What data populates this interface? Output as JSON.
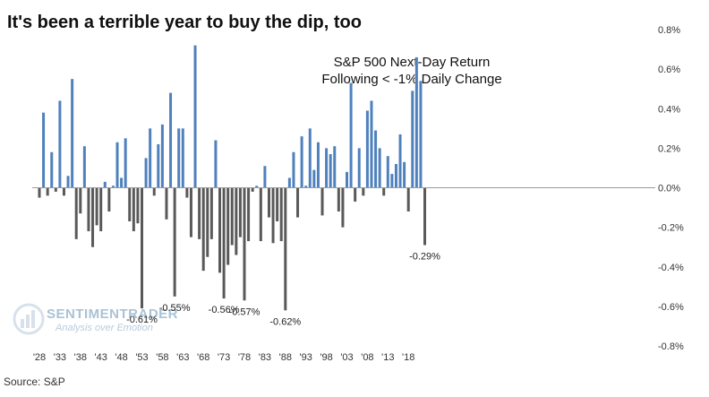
{
  "title": "It's been a terrible year to buy the dip, too",
  "subtitle_line1": "S&P 500 Next-Day Return",
  "subtitle_line2": "Following < -1% Daily Change",
  "source": "Source: S&P",
  "watermark": {
    "name": "SENTIMENTRADER",
    "tagline": "Analysis over Emotion"
  },
  "colors": {
    "positive": "#4f81bd",
    "negative": "#595959",
    "axis": "#999999"
  },
  "chart_data": {
    "type": "bar",
    "ylim": [
      -0.8,
      0.8
    ],
    "yticks": [
      "0.8%",
      "0.6%",
      "0.4%",
      "0.2%",
      "0.0%",
      "-0.2%",
      "-0.4%",
      "-0.6%",
      "-0.8%"
    ],
    "ytick_values": [
      0.8,
      0.6,
      0.4,
      0.2,
      0.0,
      -0.2,
      -0.4,
      -0.6,
      -0.8
    ],
    "xticks": [
      "'28",
      "'33",
      "'38",
      "'43",
      "'48",
      "'53",
      "'58",
      "'63",
      "'68",
      "'73",
      "'78",
      "'83",
      "'88",
      "'93",
      "'98",
      "'03",
      "'08",
      "'13",
      "'18"
    ],
    "xtick_years": [
      1928,
      1933,
      1938,
      1943,
      1948,
      1953,
      1958,
      1963,
      1968,
      1973,
      1978,
      1983,
      1988,
      1993,
      1998,
      2003,
      2008,
      2013,
      2018
    ],
    "series": [
      {
        "values": [
          [
            1928,
            -0.05
          ],
          [
            1929,
            0.38
          ],
          [
            1930,
            -0.04
          ],
          [
            1931,
            0.18
          ],
          [
            1932,
            -0.02
          ],
          [
            1933,
            0.44
          ],
          [
            1934,
            -0.04
          ],
          [
            1935,
            0.06
          ],
          [
            1936,
            0.55
          ],
          [
            1937,
            -0.26
          ],
          [
            1938,
            -0.13
          ],
          [
            1939,
            0.21
          ],
          [
            1940,
            -0.22
          ],
          [
            1941,
            -0.3
          ],
          [
            1942,
            -0.19
          ],
          [
            1943,
            -0.22
          ],
          [
            1944,
            0.03
          ],
          [
            1945,
            -0.12
          ],
          [
            1946,
            0.01
          ],
          [
            1947,
            0.23
          ],
          [
            1948,
            0.05
          ],
          [
            1949,
            0.25
          ],
          [
            1950,
            -0.17
          ],
          [
            1951,
            -0.22
          ],
          [
            1952,
            -0.18
          ],
          [
            1953,
            -0.61
          ],
          [
            1954,
            0.15
          ],
          [
            1955,
            0.3
          ],
          [
            1956,
            -0.04
          ],
          [
            1957,
            0.22
          ],
          [
            1958,
            0.32
          ],
          [
            1959,
            -0.16
          ],
          [
            1960,
            0.48
          ],
          [
            1961,
            -0.55
          ],
          [
            1962,
            0.3
          ],
          [
            1963,
            0.3
          ],
          [
            1964,
            -0.05
          ],
          [
            1965,
            -0.25
          ],
          [
            1966,
            0.72
          ],
          [
            1967,
            -0.26
          ],
          [
            1968,
            -0.42
          ],
          [
            1969,
            -0.35
          ],
          [
            1970,
            -0.26
          ],
          [
            1971,
            0.24
          ],
          [
            1972,
            -0.43
          ],
          [
            1973,
            -0.56
          ],
          [
            1974,
            -0.39
          ],
          [
            1975,
            -0.29
          ],
          [
            1976,
            -0.34
          ],
          [
            1977,
            -0.25
          ],
          [
            1978,
            -0.57
          ],
          [
            1979,
            -0.27
          ],
          [
            1980,
            -0.02
          ],
          [
            1981,
            0.01
          ],
          [
            1982,
            -0.27
          ],
          [
            1983,
            0.11
          ],
          [
            1984,
            -0.15
          ],
          [
            1985,
            -0.28
          ],
          [
            1986,
            -0.17
          ],
          [
            1987,
            -0.27
          ],
          [
            1988,
            -0.62
          ],
          [
            1989,
            0.05
          ],
          [
            1990,
            0.18
          ],
          [
            1991,
            -0.15
          ],
          [
            1992,
            0.26
          ],
          [
            1993,
            0.01
          ],
          [
            1994,
            0.3
          ],
          [
            1995,
            0.09
          ],
          [
            1996,
            0.23
          ],
          [
            1997,
            -0.14
          ],
          [
            1998,
            0.2
          ],
          [
            1999,
            0.17
          ],
          [
            2000,
            0.21
          ],
          [
            2001,
            -0.12
          ],
          [
            2002,
            -0.2
          ],
          [
            2003,
            0.08
          ],
          [
            2004,
            0.53
          ],
          [
            2005,
            -0.07
          ],
          [
            2006,
            0.2
          ],
          [
            2007,
            -0.04
          ],
          [
            2008,
            0.39
          ],
          [
            2009,
            0.44
          ],
          [
            2010,
            0.29
          ],
          [
            2011,
            0.2
          ],
          [
            2012,
            -0.04
          ],
          [
            2013,
            0.16
          ],
          [
            2014,
            0.07
          ],
          [
            2015,
            0.12
          ],
          [
            2016,
            0.27
          ],
          [
            2017,
            0.13
          ],
          [
            2018,
            -0.12
          ],
          [
            2019,
            0.49
          ],
          [
            2020,
            0.66
          ],
          [
            2021,
            0.54
          ],
          [
            2022,
            -0.29
          ]
        ]
      }
    ],
    "data_labels": [
      {
        "x": 1953,
        "text": "-0.61%"
      },
      {
        "x": 1961,
        "text": "-0.55%"
      },
      {
        "x": 1973,
        "text": "-0.56%"
      },
      {
        "x": 1978,
        "text": "-0.57%"
      },
      {
        "x": 1988,
        "text": "-0.62%"
      },
      {
        "x": 2022,
        "text": "-0.29%"
      }
    ],
    "grid": false,
    "legend": "none"
  }
}
